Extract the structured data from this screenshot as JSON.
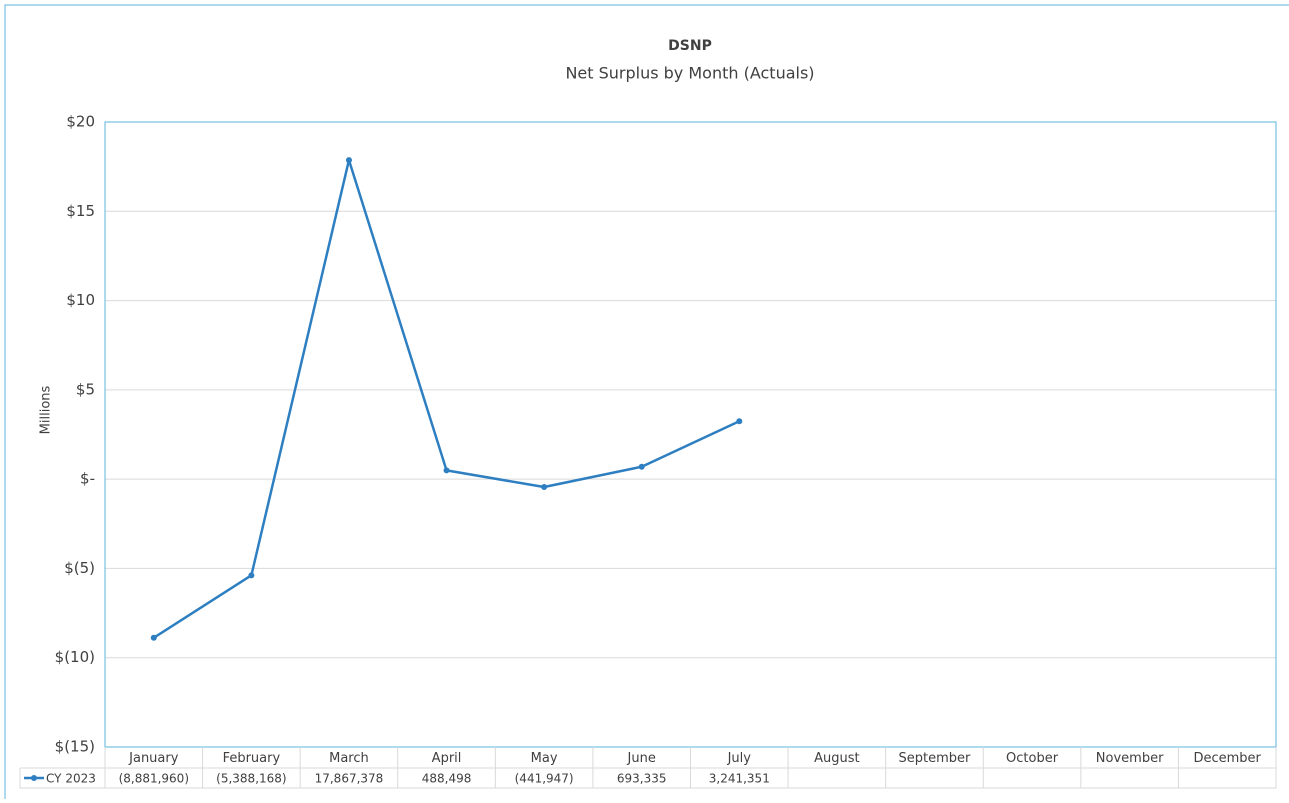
{
  "chart_data": {
    "type": "line",
    "title": "DSNP",
    "subtitle": "Net Surplus by Month (Actuals)",
    "y_label": "Millions",
    "categories": [
      "January",
      "February",
      "March",
      "April",
      "May",
      "June",
      "July",
      "August",
      "September",
      "October",
      "November",
      "December"
    ],
    "series": [
      {
        "name": "CY 2023",
        "color": "#2e7fc1",
        "values": [
          -8.88196,
          -5.388168,
          17.867378,
          0.488498,
          -0.441947,
          0.693335,
          3.241351,
          null,
          null,
          null,
          null,
          null
        ],
        "value_labels": [
          "(8,881,960)",
          "(5,388,168)",
          "17,867,378",
          "488,498",
          "(441,947)",
          "693,335",
          "3,241,351",
          null,
          null,
          null,
          null,
          null
        ]
      }
    ],
    "ylim": [
      -15,
      20
    ],
    "yticks": [
      {
        "value": -15,
        "label": "$(15)"
      },
      {
        "value": -10,
        "label": "$(10)"
      },
      {
        "value": -5,
        "label": "$(5)"
      },
      {
        "value": 0,
        "label": "$-"
      },
      {
        "value": 5,
        "label": "$5"
      },
      {
        "value": 10,
        "label": "$10"
      },
      {
        "value": 15,
        "label": "$15"
      },
      {
        "value": 20,
        "label": "$20"
      }
    ],
    "grid": true
  }
}
